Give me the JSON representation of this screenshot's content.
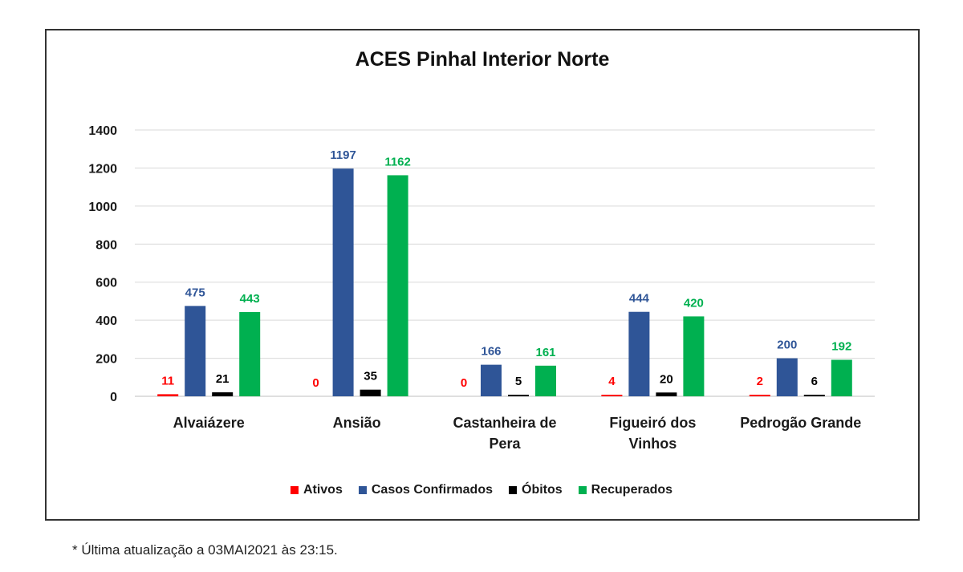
{
  "chart_data": {
    "type": "bar",
    "title": "ACES Pinhal Interior Norte",
    "categories": [
      [
        "Alvaiázere"
      ],
      [
        "Ansião"
      ],
      [
        "Castanheira de",
        "Pera"
      ],
      [
        "Figueiró dos",
        "Vinhos"
      ],
      [
        "Pedrogão Grande"
      ]
    ],
    "series": [
      {
        "name": "Ativos",
        "color": "#ff0000",
        "label_color": "#ff0000",
        "values": [
          11,
          0,
          0,
          4,
          2
        ]
      },
      {
        "name": "Casos Confirmados",
        "color": "#2f5597",
        "label_color": "#2f5597",
        "values": [
          475,
          1197,
          166,
          444,
          200
        ]
      },
      {
        "name": "Óbitos",
        "color": "#000000",
        "label_color": "#000000",
        "values": [
          21,
          35,
          5,
          20,
          6
        ]
      },
      {
        "name": "Recuperados",
        "color": "#00b050",
        "label_color": "#00b050",
        "values": [
          443,
          1162,
          161,
          420,
          192
        ]
      }
    ],
    "yticks": [
      "0",
      "200",
      "400",
      "600",
      "800",
      "1000",
      "1200",
      "1400"
    ],
    "ylim": [
      0,
      1400
    ],
    "grid": true,
    "legend_position": "bottom"
  },
  "footnote": "* Última atualização a 03MAI2021 às 23:15."
}
